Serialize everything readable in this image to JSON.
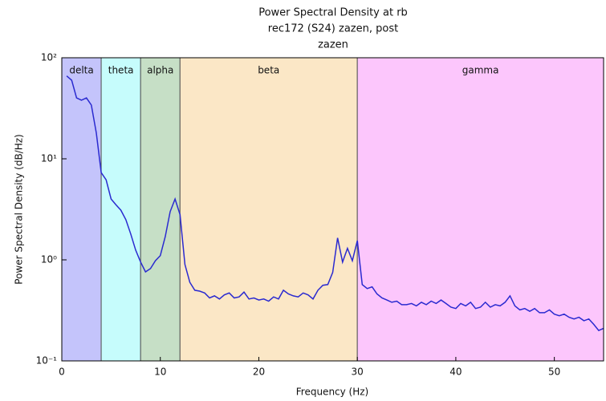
{
  "chart_data": {
    "type": "line",
    "title": [
      "Power Spectral Density at rb",
      "rec172 (S24) zazen, post",
      "zazen"
    ],
    "x_label": "Frequency (Hz)",
    "y_label": "Power Spectral Density (dB/Hz)",
    "y_scale": "log",
    "xlim": [
      0,
      55
    ],
    "xticks": [
      0,
      10,
      20,
      30,
      40,
      50
    ],
    "ylim": [
      0.1,
      100
    ],
    "yticks": [
      {
        "value": 0.1,
        "label": "10⁻¹"
      },
      {
        "value": 1,
        "label": "10⁰"
      },
      {
        "value": 10,
        "label": "10¹"
      },
      {
        "value": 100,
        "label": "10²"
      }
    ],
    "bands": [
      {
        "label": "delta",
        "range": [
          0,
          4
        ],
        "color": "#c4c4fb"
      },
      {
        "label": "theta",
        "range": [
          4,
          8
        ],
        "color": "#c6fcfc"
      },
      {
        "label": "alpha",
        "range": [
          8,
          12
        ],
        "color": "#c6dfc6"
      },
      {
        "label": "beta",
        "range": [
          12,
          30
        ],
        "color": "#fbe7c6"
      },
      {
        "label": "gamma",
        "range": [
          30,
          55
        ],
        "color": "#fcc6fc"
      }
    ],
    "color": "#2a2ad0",
    "x": [
      0.5,
      1,
      1.5,
      2,
      2.5,
      3,
      3.5,
      4,
      4.5,
      5,
      5.5,
      6,
      6.5,
      7,
      7.5,
      8,
      8.5,
      9,
      9.5,
      10,
      10.5,
      11,
      11.5,
      12,
      12.5,
      13,
      13.5,
      14,
      14.5,
      15,
      15.5,
      16,
      16.5,
      17,
      17.5,
      18,
      18.5,
      19,
      19.5,
      20,
      20.5,
      21,
      21.5,
      22,
      22.5,
      23,
      23.5,
      24,
      24.5,
      25,
      25.5,
      26,
      26.5,
      27,
      27.5,
      28,
      28.5,
      29,
      29.5,
      30,
      30.5,
      31,
      31.5,
      32,
      32.5,
      33,
      33.5,
      34,
      34.5,
      35,
      35.5,
      36,
      36.5,
      37,
      37.5,
      38,
      38.5,
      39,
      39.5,
      40,
      40.5,
      41,
      41.5,
      42,
      42.5,
      43,
      43.5,
      44,
      44.5,
      45,
      45.5,
      46,
      46.5,
      47,
      47.5,
      48,
      48.5,
      49,
      49.5,
      50,
      50.5,
      51,
      51.5,
      52,
      52.5,
      53,
      53.5,
      54,
      54.5,
      55
    ],
    "values": [
      66,
      60,
      40,
      38,
      40,
      34,
      18,
      7.3,
      6.2,
      4.0,
      3.5,
      3.1,
      2.5,
      1.8,
      1.25,
      0.95,
      0.76,
      0.82,
      0.98,
      1.1,
      1.7,
      3.0,
      4.0,
      2.8,
      0.9,
      0.6,
      0.5,
      0.49,
      0.47,
      0.42,
      0.44,
      0.41,
      0.45,
      0.47,
      0.42,
      0.43,
      0.48,
      0.41,
      0.42,
      0.4,
      0.41,
      0.39,
      0.43,
      0.41,
      0.5,
      0.46,
      0.44,
      0.43,
      0.47,
      0.45,
      0.41,
      0.5,
      0.56,
      0.57,
      0.75,
      1.65,
      0.95,
      1.3,
      0.98,
      1.55,
      0.57,
      0.52,
      0.54,
      0.46,
      0.42,
      0.4,
      0.38,
      0.39,
      0.36,
      0.36,
      0.37,
      0.35,
      0.38,
      0.36,
      0.39,
      0.37,
      0.4,
      0.37,
      0.34,
      0.33,
      0.37,
      0.35,
      0.38,
      0.33,
      0.34,
      0.38,
      0.34,
      0.36,
      0.35,
      0.38,
      0.44,
      0.35,
      0.32,
      0.33,
      0.31,
      0.33,
      0.3,
      0.3,
      0.32,
      0.29,
      0.28,
      0.29,
      0.27,
      0.26,
      0.27,
      0.25,
      0.26,
      0.23,
      0.2,
      0.21
    ]
  }
}
